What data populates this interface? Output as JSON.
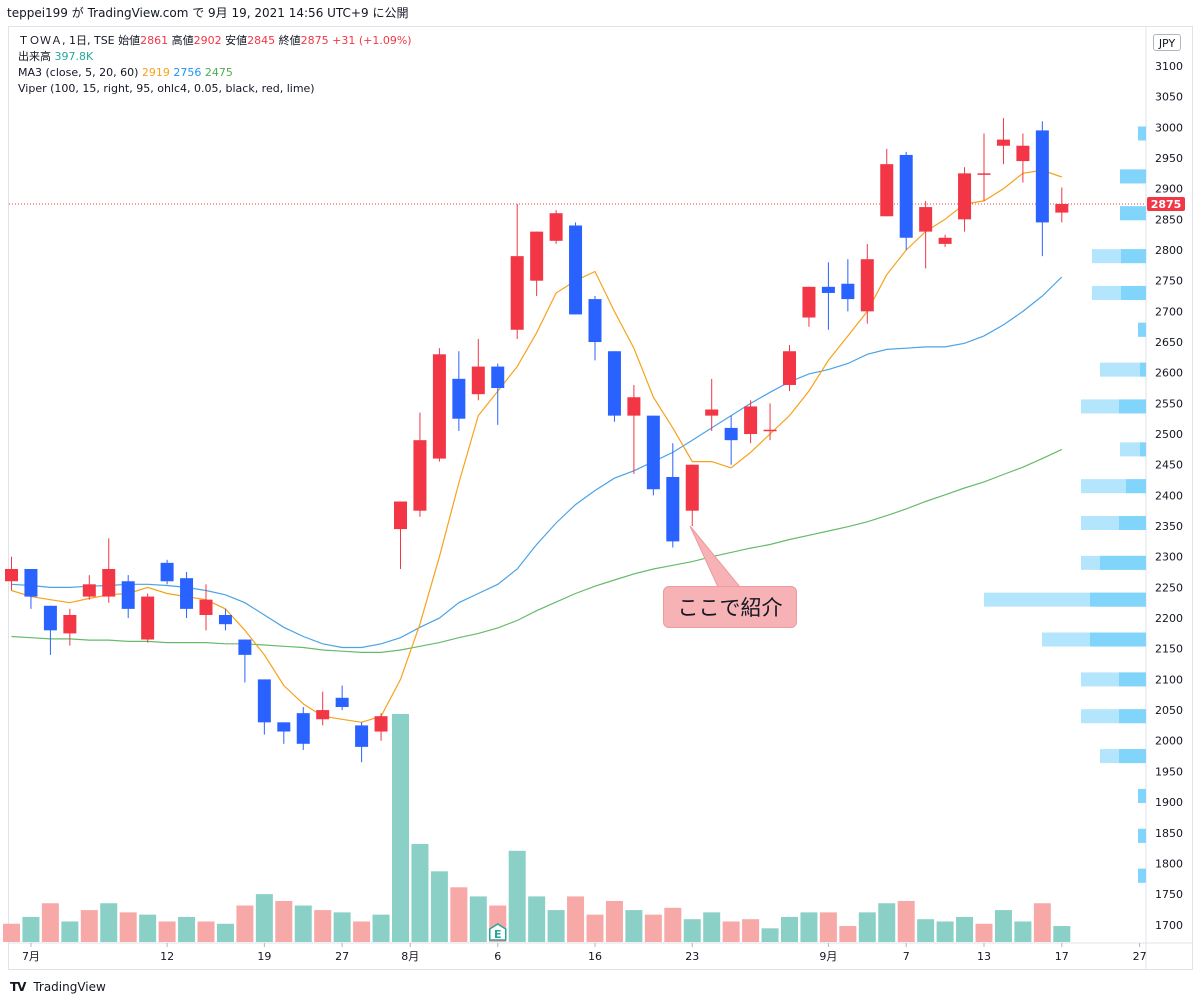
{
  "header": {
    "text": "teppei199 が TradingView.com で 9月 19, 2021 14:56 UTC+9 に公開"
  },
  "legend": {
    "symbol_line": "ＴＯＷＡ, 1日, TSE",
    "open_label": "始値",
    "open": "2861",
    "high_label": "高値",
    "high": "2902",
    "low_label": "安値",
    "low": "2845",
    "close_label": "終値",
    "close": "2875",
    "change": "+31 (+1.09%)",
    "volume_label": "出来高",
    "volume": "397.8K",
    "ma_label": "MA3 (close, 5, 20, 60)",
    "ma5": "2919",
    "ma20": "2756",
    "ma60": "2475",
    "viper_label": "Viper (100, 15, right, 95, ohlc4, 0.05, black, red, lime)"
  },
  "currency": "JPY",
  "last_price_label": "2875",
  "annotation": "ここで紹介",
  "earnings_marker": "E",
  "footer": {
    "logo": "TV",
    "brand": "TradingView"
  },
  "colors": {
    "up": "#f23645",
    "down": "#2962ff",
    "vol_up": "#f7a9a7",
    "vol_down": "#8bd0c7",
    "ma5": "#f7a21b",
    "ma20": "#4ba3e6",
    "ma60": "#66bb6a",
    "vp_light": "#b3e5fc",
    "vp_dark": "#81d4fa",
    "price_line": "#f23645"
  },
  "chart_data": {
    "type": "candlestick",
    "y_ticks": [
      1700,
      1750,
      1800,
      1850,
      1900,
      1950,
      2000,
      2050,
      2100,
      2150,
      2200,
      2250,
      2300,
      2350,
      2400,
      2450,
      2500,
      2550,
      2600,
      2650,
      2700,
      2750,
      2800,
      2850,
      2900,
      2950,
      3000,
      3050,
      3100
    ],
    "x_ticks": [
      {
        "label": "7月",
        "index": 1
      },
      {
        "label": "12",
        "index": 8
      },
      {
        "label": "19",
        "index": 13
      },
      {
        "label": "27",
        "index": 17
      },
      {
        "label": "8月",
        "index": 20.5
      },
      {
        "label": "6",
        "index": 25
      },
      {
        "label": "16",
        "index": 30
      },
      {
        "label": "23",
        "index": 35
      },
      {
        "label": "9月",
        "index": 42
      },
      {
        "label": "7",
        "index": 46
      },
      {
        "label": "13",
        "index": 50
      },
      {
        "label": "17",
        "index": 54
      },
      {
        "label": "27",
        "index": 58
      }
    ],
    "candles": [
      {
        "o": 2260,
        "h": 2300,
        "l": 2245,
        "c": 2280
      },
      {
        "o": 2280,
        "h": 2280,
        "l": 2215,
        "c": 2235
      },
      {
        "o": 2220,
        "h": 2220,
        "l": 2140,
        "c": 2180
      },
      {
        "o": 2175,
        "h": 2215,
        "l": 2155,
        "c": 2205
      },
      {
        "o": 2235,
        "h": 2270,
        "l": 2230,
        "c": 2255
      },
      {
        "o": 2235,
        "h": 2330,
        "l": 2225,
        "c": 2280
      },
      {
        "o": 2260,
        "h": 2270,
        "l": 2200,
        "c": 2215
      },
      {
        "o": 2165,
        "h": 2240,
        "l": 2160,
        "c": 2235
      },
      {
        "o": 2290,
        "h": 2295,
        "l": 2255,
        "c": 2260
      },
      {
        "o": 2265,
        "h": 2275,
        "l": 2200,
        "c": 2215
      },
      {
        "o": 2205,
        "h": 2255,
        "l": 2180,
        "c": 2230
      },
      {
        "o": 2205,
        "h": 2215,
        "l": 2180,
        "c": 2190
      },
      {
        "o": 2165,
        "h": 2165,
        "l": 2095,
        "c": 2140
      },
      {
        "o": 2100,
        "h": 2100,
        "l": 2010,
        "c": 2030
      },
      {
        "o": 2030,
        "h": 2030,
        "l": 1995,
        "c": 2015
      },
      {
        "o": 2045,
        "h": 2055,
        "l": 1985,
        "c": 1995
      },
      {
        "o": 2035,
        "h": 2080,
        "l": 2025,
        "c": 2050
      },
      {
        "o": 2070,
        "h": 2090,
        "l": 2050,
        "c": 2055
      },
      {
        "o": 2025,
        "h": 2030,
        "l": 1965,
        "c": 1990
      },
      {
        "o": 2015,
        "h": 2045,
        "l": 2000,
        "c": 2040
      },
      {
        "o": 2345,
        "h": 2390,
        "l": 2280,
        "c": 2390
      },
      {
        "o": 2375,
        "h": 2535,
        "l": 2365,
        "c": 2490
      },
      {
        "o": 2460,
        "h": 2640,
        "l": 2455,
        "c": 2630
      },
      {
        "o": 2590,
        "h": 2635,
        "l": 2505,
        "c": 2525
      },
      {
        "o": 2565,
        "h": 2655,
        "l": 2555,
        "c": 2610
      },
      {
        "o": 2610,
        "h": 2615,
        "l": 2515,
        "c": 2575
      },
      {
        "o": 2670,
        "h": 2875,
        "l": 2655,
        "c": 2790
      },
      {
        "o": 2750,
        "h": 2830,
        "l": 2725,
        "c": 2830
      },
      {
        "o": 2815,
        "h": 2865,
        "l": 2810,
        "c": 2860
      },
      {
        "o": 2840,
        "h": 2845,
        "l": 2695,
        "c": 2695
      },
      {
        "o": 2720,
        "h": 2725,
        "l": 2620,
        "c": 2650
      },
      {
        "o": 2635,
        "h": 2635,
        "l": 2520,
        "c": 2530
      },
      {
        "o": 2530,
        "h": 2580,
        "l": 2435,
        "c": 2560
      },
      {
        "o": 2530,
        "h": 2530,
        "l": 2400,
        "c": 2410
      },
      {
        "o": 2430,
        "h": 2485,
        "l": 2315,
        "c": 2325
      },
      {
        "o": 2375,
        "h": 2450,
        "l": 2350,
        "c": 2450
      },
      {
        "o": 2530,
        "h": 2590,
        "l": 2505,
        "c": 2540
      },
      {
        "o": 2510,
        "h": 2530,
        "l": 2450,
        "c": 2490
      },
      {
        "o": 2500,
        "h": 2555,
        "l": 2485,
        "c": 2545
      },
      {
        "o": 2505,
        "h": 2550,
        "l": 2490,
        "c": 2507
      },
      {
        "o": 2580,
        "h": 2645,
        "l": 2570,
        "c": 2635
      },
      {
        "o": 2690,
        "h": 2740,
        "l": 2675,
        "c": 2740
      },
      {
        "o": 2740,
        "h": 2780,
        "l": 2670,
        "c": 2730
      },
      {
        "o": 2745,
        "h": 2785,
        "l": 2700,
        "c": 2720
      },
      {
        "o": 2700,
        "h": 2810,
        "l": 2680,
        "c": 2785
      },
      {
        "o": 2855,
        "h": 2965,
        "l": 2855,
        "c": 2940
      },
      {
        "o": 2955,
        "h": 2960,
        "l": 2800,
        "c": 2820
      },
      {
        "o": 2830,
        "h": 2880,
        "l": 2770,
        "c": 2870
      },
      {
        "o": 2810,
        "h": 2825,
        "l": 2805,
        "c": 2820
      },
      {
        "o": 2850,
        "h": 2935,
        "l": 2830,
        "c": 2925
      },
      {
        "o": 2925,
        "h": 2990,
        "l": 2880,
        "c": 2925
      },
      {
        "o": 2970,
        "h": 3015,
        "l": 2940,
        "c": 2980
      },
      {
        "o": 2945,
        "h": 2990,
        "l": 2910,
        "c": 2970
      },
      {
        "o": 2995,
        "h": 3010,
        "l": 2790,
        "c": 2845
      },
      {
        "o": 2861,
        "h": 2902,
        "l": 2845,
        "c": 2875
      }
    ],
    "volume": [
      {
        "v": 0.08,
        "up": true
      },
      {
        "v": 0.11,
        "up": false
      },
      {
        "v": 0.17,
        "up": true
      },
      {
        "v": 0.09,
        "up": false
      },
      {
        "v": 0.14,
        "up": true
      },
      {
        "v": 0.17,
        "up": false
      },
      {
        "v": 0.13,
        "up": true
      },
      {
        "v": 0.12,
        "up": false
      },
      {
        "v": 0.09,
        "up": true
      },
      {
        "v": 0.11,
        "up": false
      },
      {
        "v": 0.09,
        "up": true
      },
      {
        "v": 0.08,
        "up": false
      },
      {
        "v": 0.16,
        "up": true
      },
      {
        "v": 0.21,
        "up": false
      },
      {
        "v": 0.18,
        "up": true
      },
      {
        "v": 0.16,
        "up": false
      },
      {
        "v": 0.14,
        "up": true
      },
      {
        "v": 0.13,
        "up": false
      },
      {
        "v": 0.09,
        "up": true
      },
      {
        "v": 0.12,
        "up": false
      },
      {
        "v": 1.0,
        "up": false
      },
      {
        "v": 0.43,
        "up": false
      },
      {
        "v": 0.31,
        "up": false
      },
      {
        "v": 0.24,
        "up": true
      },
      {
        "v": 0.2,
        "up": false
      },
      {
        "v": 0.16,
        "up": true
      },
      {
        "v": 0.4,
        "up": false
      },
      {
        "v": 0.2,
        "up": false
      },
      {
        "v": 0.14,
        "up": false
      },
      {
        "v": 0.2,
        "up": true
      },
      {
        "v": 0.12,
        "up": true
      },
      {
        "v": 0.18,
        "up": true
      },
      {
        "v": 0.14,
        "up": false
      },
      {
        "v": 0.12,
        "up": true
      },
      {
        "v": 0.15,
        "up": true
      },
      {
        "v": 0.1,
        "up": false
      },
      {
        "v": 0.13,
        "up": false
      },
      {
        "v": 0.09,
        "up": true
      },
      {
        "v": 0.1,
        "up": true
      },
      {
        "v": 0.06,
        "up": false
      },
      {
        "v": 0.11,
        "up": false
      },
      {
        "v": 0.13,
        "up": false
      },
      {
        "v": 0.13,
        "up": true
      },
      {
        "v": 0.07,
        "up": true
      },
      {
        "v": 0.13,
        "up": false
      },
      {
        "v": 0.17,
        "up": false
      },
      {
        "v": 0.18,
        "up": true
      },
      {
        "v": 0.1,
        "up": false
      },
      {
        "v": 0.09,
        "up": false
      },
      {
        "v": 0.11,
        "up": false
      },
      {
        "v": 0.08,
        "up": true
      },
      {
        "v": 0.14,
        "up": false
      },
      {
        "v": 0.09,
        "up": false
      },
      {
        "v": 0.17,
        "up": true
      },
      {
        "v": 0.07,
        "up": false
      }
    ],
    "ma5": [
      2245,
      2235,
      2230,
      2225,
      2232,
      2238,
      2240,
      2250,
      2240,
      2235,
      2230,
      2215,
      2180,
      2140,
      2090,
      2060,
      2040,
      2035,
      2030,
      2040,
      2100,
      2190,
      2300,
      2420,
      2530,
      2570,
      2610,
      2665,
      2730,
      2750,
      2765,
      2700,
      2640,
      2560,
      2510,
      2455,
      2455,
      2445,
      2470,
      2500,
      2530,
      2570,
      2620,
      2660,
      2700,
      2760,
      2800,
      2830,
      2850,
      2875,
      2880,
      2900,
      2925,
      2930,
      2919
    ],
    "ma20": [
      2255,
      2253,
      2250,
      2250,
      2252,
      2253,
      2255,
      2255,
      2253,
      2250,
      2245,
      2238,
      2225,
      2205,
      2185,
      2170,
      2158,
      2152,
      2152,
      2158,
      2168,
      2185,
      2200,
      2225,
      2240,
      2255,
      2280,
      2320,
      2355,
      2385,
      2408,
      2428,
      2440,
      2455,
      2470,
      2490,
      2510,
      2530,
      2550,
      2568,
      2585,
      2598,
      2605,
      2615,
      2630,
      2638,
      2640,
      2642,
      2642,
      2648,
      2660,
      2678,
      2700,
      2725,
      2756
    ],
    "ma60": [
      2170,
      2168,
      2166,
      2166,
      2164,
      2164,
      2162,
      2162,
      2160,
      2160,
      2160,
      2158,
      2158,
      2156,
      2154,
      2152,
      2148,
      2146,
      2144,
      2144,
      2148,
      2154,
      2160,
      2168,
      2175,
      2184,
      2196,
      2212,
      2226,
      2240,
      2252,
      2262,
      2272,
      2280,
      2286,
      2292,
      2300,
      2307,
      2314,
      2320,
      2328,
      2335,
      2342,
      2349,
      2357,
      2367,
      2378,
      2390,
      2401,
      2412,
      2422,
      2434,
      2446,
      2460,
      2475
    ],
    "volume_profile": [
      {
        "price": 2990,
        "w": 8,
        "d": 8
      },
      {
        "price": 2920,
        "w": 26,
        "d": 26
      },
      {
        "price": 2860,
        "w": 26,
        "d": 26
      },
      {
        "price": 2790,
        "w": 54,
        "d": 25
      },
      {
        "price": 2730,
        "w": 54,
        "d": 25
      },
      {
        "price": 2670,
        "w": 8,
        "d": 8
      },
      {
        "price": 2605,
        "w": 46,
        "d": 6
      },
      {
        "price": 2545,
        "w": 65,
        "d": 27
      },
      {
        "price": 2475,
        "w": 26,
        "d": 6
      },
      {
        "price": 2415,
        "w": 65,
        "d": 20
      },
      {
        "price": 2355,
        "w": 65,
        "d": 27
      },
      {
        "price": 2290,
        "w": 65,
        "d": 46
      },
      {
        "price": 2230,
        "w": 162,
        "d": 56
      },
      {
        "price": 2165,
        "w": 104,
        "d": 56
      },
      {
        "price": 2100,
        "w": 65,
        "d": 27
      },
      {
        "price": 2040,
        "w": 65,
        "d": 27
      },
      {
        "price": 1975,
        "w": 46,
        "d": 27
      },
      {
        "price": 1910,
        "w": 8,
        "d": 8
      },
      {
        "price": 1845,
        "w": 8,
        "d": 8
      },
      {
        "price": 1780,
        "w": 8,
        "d": 8
      }
    ],
    "last_price": 2875
  }
}
